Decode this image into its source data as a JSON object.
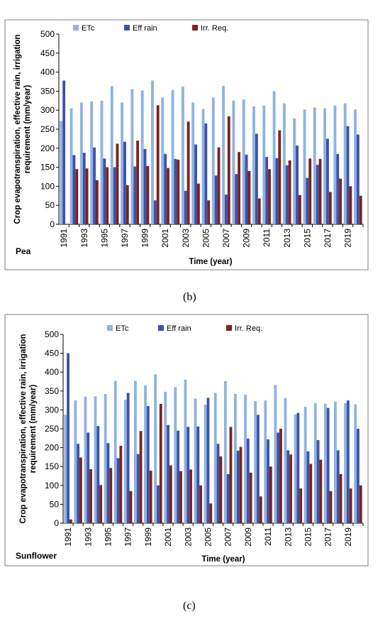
{
  "panels": [
    {
      "label": "(b)"
    },
    {
      "label": "(c)"
    }
  ],
  "chart_data": [
    {
      "type": "bar",
      "crop_label": "Pea",
      "xlabel": "Time (year)",
      "ylabel": "Crop evapotranspiration, effective rain, irrigation requirement (mm/year)",
      "ylim": [
        0,
        500
      ],
      "yticks": [
        0,
        50,
        100,
        150,
        200,
        250,
        300,
        350,
        400,
        450,
        500
      ],
      "categories": [
        "1991",
        "1992",
        "1993",
        "1994",
        "1995",
        "1996",
        "1997",
        "1998",
        "1999",
        "2000",
        "2001",
        "2002",
        "2003",
        "2004",
        "2005",
        "2006",
        "2007",
        "2008",
        "2009",
        "2010",
        "2011",
        "2012",
        "2013",
        "2014",
        "2015",
        "2016",
        "2017",
        "2018",
        "2019",
        "2020"
      ],
      "xtick_labels": [
        "1991",
        "",
        "1993",
        "",
        "1995",
        "",
        "1997",
        "",
        "1999",
        "",
        "2001",
        "",
        "2003",
        "",
        "2005",
        "",
        "2007",
        "",
        "2009",
        "",
        "2011",
        "",
        "2013",
        "",
        "2015",
        "",
        "2017",
        "",
        "2019",
        ""
      ],
      "legend_position": "top",
      "grid": false,
      "series": [
        {
          "name": "ETc",
          "color": "#8db4e2",
          "values": [
            272,
            305,
            320,
            323,
            325,
            363,
            320,
            355,
            352,
            378,
            333,
            353,
            362,
            320,
            303,
            333,
            364,
            325,
            328,
            310,
            312,
            350,
            318,
            278,
            302,
            307,
            305,
            312,
            318,
            302
          ]
        },
        {
          "name": "Eff rain",
          "color": "#3f51a6",
          "values": [
            378,
            182,
            188,
            202,
            173,
            150,
            217,
            152,
            198,
            63,
            185,
            172,
            88,
            210,
            265,
            128,
            78,
            132,
            183,
            238,
            177,
            174,
            155,
            207,
            122,
            156,
            225,
            185,
            258,
            236
          ]
        },
        {
          "name": "Irr. Req.",
          "color": "#7b2320",
          "values": [
            0,
            145,
            147,
            116,
            150,
            212,
            103,
            220,
            153,
            313,
            148,
            170,
            270,
            107,
            63,
            202,
            284,
            190,
            140,
            68,
            145,
            247,
            168,
            77,
            173,
            172,
            85,
            120,
            100,
            75
          ]
        }
      ]
    },
    {
      "type": "bar",
      "crop_label": "Sunflower",
      "xlabel": "Time (year)",
      "ylabel": "Crop evapotranspiration, effective rain, irrigation requirement (mm/year)",
      "ylim": [
        0,
        500
      ],
      "yticks": [
        0,
        50,
        100,
        150,
        200,
        250,
        300,
        350,
        400,
        450,
        500
      ],
      "categories": [
        "1991",
        "1992",
        "1993",
        "1994",
        "1995",
        "1996",
        "1997",
        "1998",
        "1999",
        "2000",
        "2001",
        "2002",
        "2003",
        "2004",
        "2005",
        "2006",
        "2007",
        "2008",
        "2009",
        "2010",
        "2011",
        "2012",
        "2013",
        "2014",
        "2015",
        "2016",
        "2017",
        "2018",
        "2019",
        "2020"
      ],
      "xtick_labels": [
        "1991",
        "",
        "1993",
        "",
        "1995",
        "",
        "1997",
        "",
        "1999",
        "",
        "2001",
        "",
        "2003",
        "",
        "2005",
        "",
        "2007",
        "",
        "2009",
        "",
        "2011",
        "",
        "2013",
        "",
        "2015",
        "",
        "2017",
        "",
        "2019",
        ""
      ],
      "legend_position": "top",
      "grid": false,
      "series": [
        {
          "name": "ETc",
          "color": "#8db4e2",
          "values": [
            287,
            325,
            335,
            336,
            342,
            377,
            327,
            377,
            365,
            394,
            348,
            360,
            380,
            330,
            314,
            345,
            376,
            342,
            340,
            323,
            325,
            366,
            332,
            288,
            308,
            318,
            316,
            322,
            318,
            315
          ]
        },
        {
          "name": "Eff rain",
          "color": "#3f51a6",
          "values": [
            450,
            210,
            240,
            257,
            212,
            172,
            345,
            183,
            310,
            100,
            260,
            245,
            255,
            256,
            332,
            210,
            130,
            192,
            224,
            287,
            222,
            240,
            193,
            292,
            190,
            220,
            305,
            193,
            325,
            250
          ]
        },
        {
          "name": "Irr. Req.",
          "color": "#7b2320",
          "values": [
            10,
            174,
            143,
            101,
            146,
            205,
            85,
            244,
            139,
            316,
            153,
            138,
            142,
            100,
            52,
            177,
            255,
            202,
            134,
            71,
            150,
            250,
            182,
            92,
            157,
            168,
            85,
            130,
            92,
            100
          ]
        }
      ]
    }
  ]
}
